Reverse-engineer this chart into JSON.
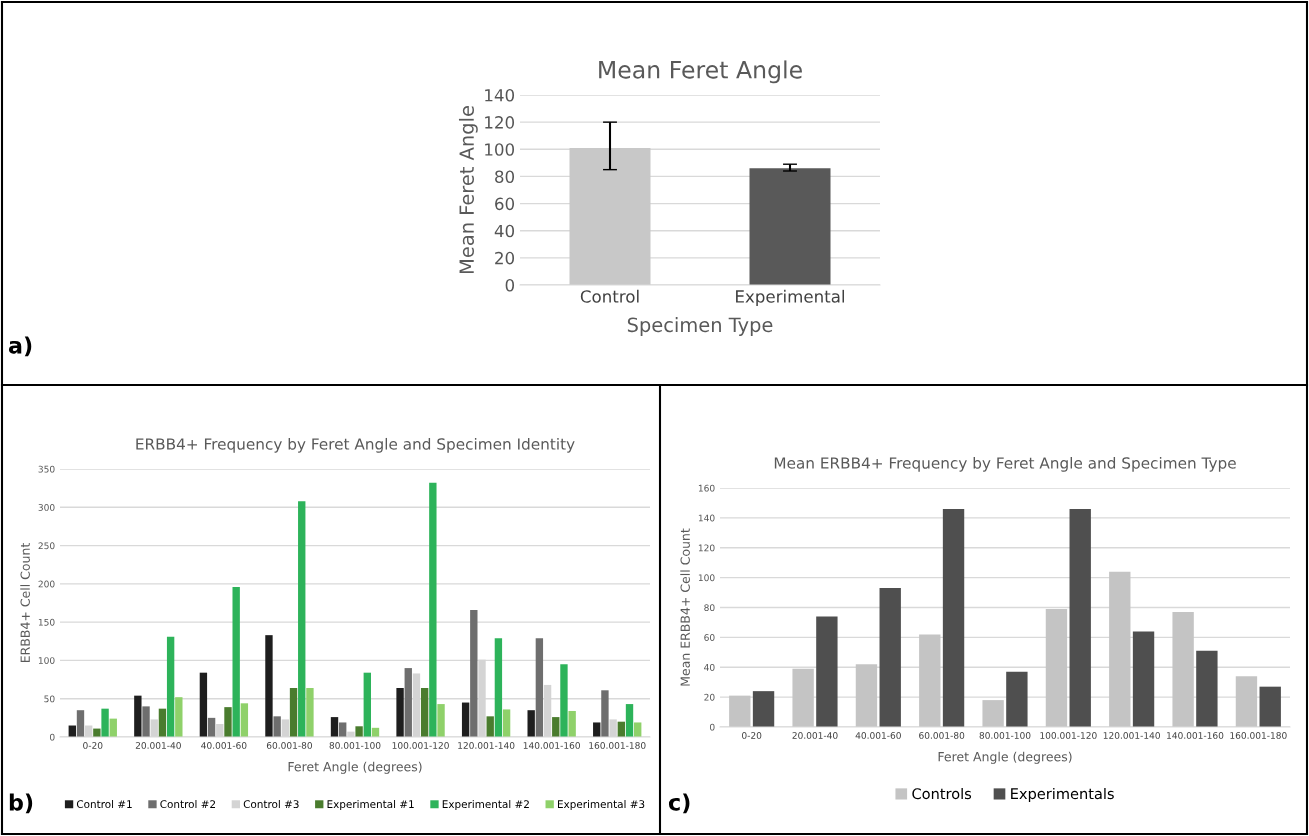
{
  "chart_data": [
    {
      "type": "bar",
      "title": "Mean Feret Angle",
      "xlabel": "Specimen Type",
      "ylabel": "Mean Feret Angle",
      "categories": [
        "Control",
        "Experimental"
      ],
      "values": [
        101,
        86
      ],
      "colors": [
        "#c8c8c8",
        "#595959"
      ],
      "errors": [
        [
          85,
          120
        ],
        [
          84,
          89
        ]
      ],
      "ylim": [
        0,
        140
      ],
      "yticks": [
        0,
        20,
        40,
        60,
        80,
        100,
        120,
        140
      ],
      "grid": "y",
      "annotations": [
        "a)"
      ]
    },
    {
      "type": "bar",
      "title": "ERBB4+ Frequency by Feret Angle and Specimen Identity",
      "xlabel": "Feret Angle (degrees)",
      "ylabel": "ERBB4+ Cell Count",
      "categories": [
        "0-20",
        "20.001-40",
        "40.001-60",
        "60.001-80",
        "80.001-100",
        "100.001-120",
        "120.001-140",
        "140.001-160",
        "160.001-180"
      ],
      "series": [
        {
          "name": "Control #1",
          "color": "#1e1e1e",
          "values": [
            15,
            54,
            84,
            133,
            26,
            64,
            45,
            35,
            19
          ]
        },
        {
          "name": "Control #2",
          "color": "#6e6e6e",
          "values": [
            35,
            40,
            25,
            27,
            19,
            90,
            166,
            129,
            61
          ]
        },
        {
          "name": "Control #3",
          "color": "#d4d4d4",
          "values": [
            15,
            23,
            17,
            23,
            7,
            83,
            101,
            68,
            23
          ]
        },
        {
          "name": "Experimental #1",
          "color": "#4a7c2e",
          "values": [
            11,
            37,
            39,
            64,
            14,
            64,
            27,
            26,
            20
          ]
        },
        {
          "name": "Experimental #2",
          "color": "#2db35a",
          "values": [
            37,
            131,
            196,
            308,
            84,
            332,
            129,
            95,
            43
          ]
        },
        {
          "name": "Experimental #3",
          "color": "#8fd16a",
          "values": [
            24,
            52,
            44,
            64,
            12,
            43,
            36,
            34,
            19
          ]
        }
      ],
      "ylim": [
        0,
        350
      ],
      "yticks": [
        0,
        50,
        100,
        150,
        200,
        250,
        300,
        350
      ],
      "grid": "y",
      "legend": "bottom",
      "annotations": [
        "b)"
      ]
    },
    {
      "type": "bar",
      "title": "Mean ERBB4+ Frequency by Feret Angle and Specimen Type",
      "xlabel": "Feret Angle (degrees)",
      "ylabel": "Mean ERBB4+ Cell Count",
      "categories": [
        "0-20",
        "20.001-40",
        "40.001-60",
        "60.001-80",
        "80.001-100",
        "100.001-120",
        "120.001-140",
        "140.001-160",
        "160.001-180"
      ],
      "series": [
        {
          "name": "Controls",
          "color": "#c4c4c4",
          "values": [
            21,
            39,
            42,
            62,
            18,
            79,
            104,
            77,
            34
          ]
        },
        {
          "name": "Experimentals",
          "color": "#4f4f4f",
          "values": [
            24,
            74,
            93,
            146,
            37,
            146,
            64,
            51,
            27
          ]
        }
      ],
      "ylim": [
        0,
        160
      ],
      "yticks": [
        0,
        20,
        40,
        60,
        80,
        100,
        120,
        140,
        160
      ],
      "grid": "y",
      "legend": "bottom",
      "annotations": [
        "c)"
      ]
    }
  ]
}
